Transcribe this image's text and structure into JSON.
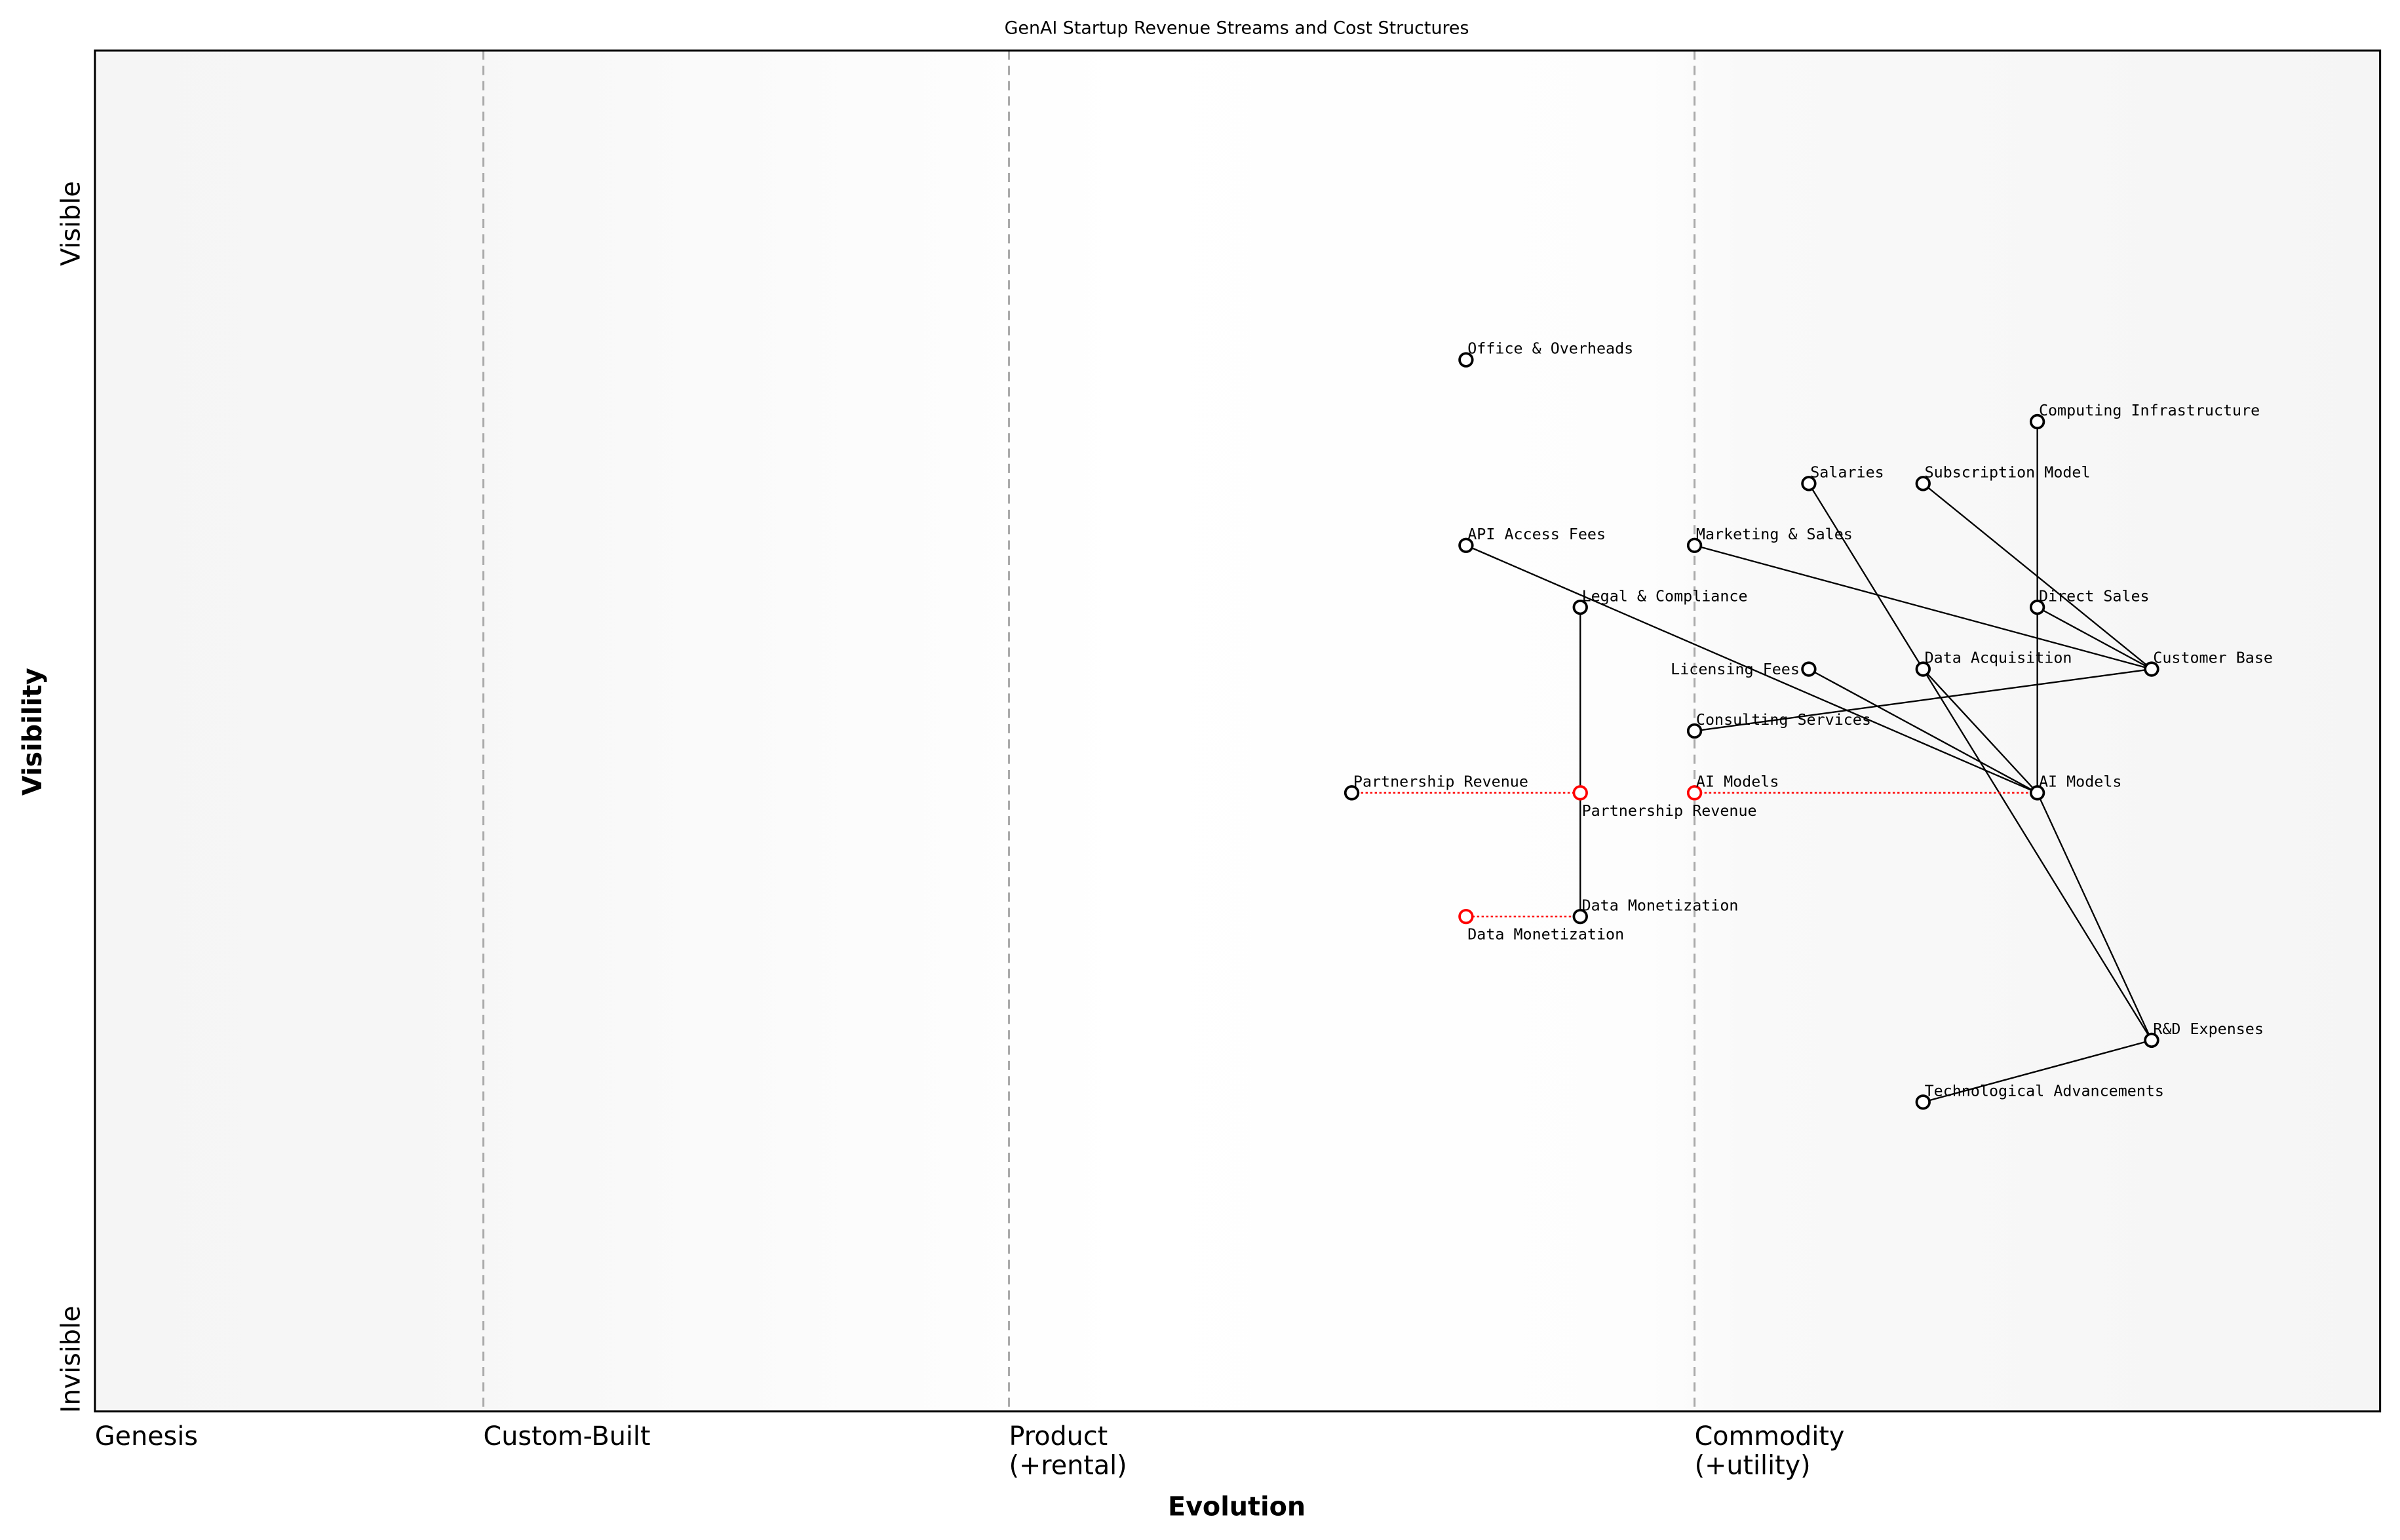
{
  "chart_data": {
    "type": "wardley-map",
    "title": "GenAI Startup Revenue Streams and Cost Structures",
    "xlabel": "Evolution",
    "ylabel": "Visibility",
    "xlim": [
      0,
      1
    ],
    "ylim": [
      0,
      1.1
    ],
    "x_stages": [
      {
        "label": "Genesis",
        "x": 0
      },
      {
        "label": "Custom-Built",
        "x": 0.17
      },
      {
        "label": "Product\n(+rental)",
        "x": 0.4
      },
      {
        "label": "Commodity\n(+utility)",
        "x": 0.7
      }
    ],
    "y_labels": {
      "top": "Visible",
      "bottom": "Invisible"
    },
    "colors": {
      "component": "#000000",
      "evolved": "#ff0000",
      "stage_line": "#aaaaaa",
      "background_edge": "#f5f5f5"
    },
    "components": [
      {
        "name": "Office & Overheads",
        "x": 0.6,
        "y": 0.85
      },
      {
        "name": "Computing Infrastructure",
        "x": 0.85,
        "y": 0.8
      },
      {
        "name": "Salaries",
        "x": 0.75,
        "y": 0.75
      },
      {
        "name": "Subscription Model",
        "x": 0.8,
        "y": 0.75
      },
      {
        "name": "API Access Fees",
        "x": 0.6,
        "y": 0.7
      },
      {
        "name": "Marketing & Sales",
        "x": 0.7,
        "y": 0.7
      },
      {
        "name": "Legal & Compliance",
        "x": 0.65,
        "y": 0.65
      },
      {
        "name": "Direct Sales",
        "x": 0.85,
        "y": 0.65
      },
      {
        "name": "Licensing Fees",
        "x": 0.75,
        "y": 0.6
      },
      {
        "name": "Data Acquisition",
        "x": 0.8,
        "y": 0.6
      },
      {
        "name": "Customer Base",
        "x": 0.9,
        "y": 0.6
      },
      {
        "name": "Consulting Services",
        "x": 0.7,
        "y": 0.55
      },
      {
        "name": "Partnership Revenue",
        "x": 0.55,
        "y": 0.5
      },
      {
        "name": "AI Models",
        "x": 0.85,
        "y": 0.5
      },
      {
        "name": "Data Monetization",
        "x": 0.65,
        "y": 0.4
      },
      {
        "name": "R&D Expenses",
        "x": 0.9,
        "y": 0.3
      },
      {
        "name": "Technological Advancements",
        "x": 0.8,
        "y": 0.25
      }
    ],
    "evolutions": [
      {
        "name": "Partnership Revenue",
        "from_x": 0.55,
        "to_x": 0.65,
        "y": 0.5
      },
      {
        "name": "AI Models",
        "from_x": 0.85,
        "to_x": 0.7,
        "y": 0.5
      },
      {
        "name": "Data Monetization",
        "from_x": 0.65,
        "to_x": 0.6,
        "y": 0.4
      }
    ],
    "links": [
      [
        "Computing Infrastructure",
        "AI Models"
      ],
      [
        "Subscription Model",
        "Customer Base"
      ],
      [
        "Direct Sales",
        "Customer Base"
      ],
      [
        "Marketing & Sales",
        "Customer Base"
      ],
      [
        "Consulting Services",
        "Customer Base"
      ],
      [
        "API Access Fees",
        "AI Models"
      ],
      [
        "Licensing Fees",
        "AI Models"
      ],
      [
        "Data Acquisition",
        "AI Models"
      ],
      [
        "Salaries",
        "R&D Expenses"
      ],
      [
        "AI Models",
        "R&D Expenses"
      ],
      [
        "Legal & Compliance",
        "Data Monetization"
      ],
      [
        "Technological Advancements",
        "R&D Expenses"
      ]
    ]
  }
}
